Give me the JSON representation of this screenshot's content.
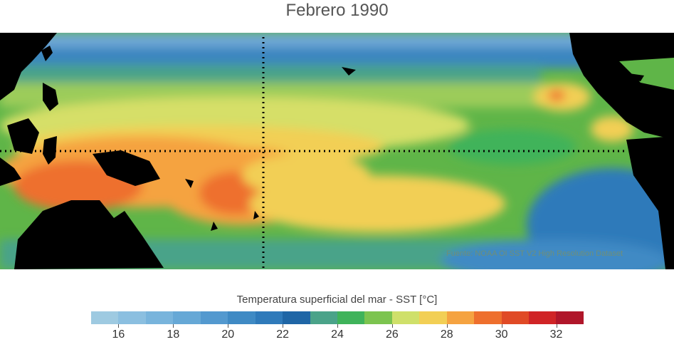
{
  "title": "Febrero 1990",
  "source": "Fuente: NOAA OI SST V2 High Resolution Dataset",
  "colorbar": {
    "label": "Temperatura superficial del mar - SST  [°C]",
    "min": 15,
    "max": 33,
    "colors": [
      "#9ecae1",
      "#8bbfe0",
      "#78b4dc",
      "#66a8d6",
      "#5399cf",
      "#3f8ac4",
      "#2f7aba",
      "#1f66a6",
      "#4aa389",
      "#3fb35a",
      "#7cc44f",
      "#cfe06a",
      "#f2cf55",
      "#f5a341",
      "#ee6f2d",
      "#e04a26",
      "#d02426",
      "#b0162a"
    ],
    "ticks": [
      {
        "value": 16,
        "label": "16"
      },
      {
        "value": 18,
        "label": "18"
      },
      {
        "value": 20,
        "label": "20"
      },
      {
        "value": 22,
        "label": "22"
      },
      {
        "value": 24,
        "label": "24"
      },
      {
        "value": 26,
        "label": "26"
      },
      {
        "value": 28,
        "label": "28"
      },
      {
        "value": 30,
        "label": "30"
      },
      {
        "value": 32,
        "label": "32"
      }
    ]
  }
}
